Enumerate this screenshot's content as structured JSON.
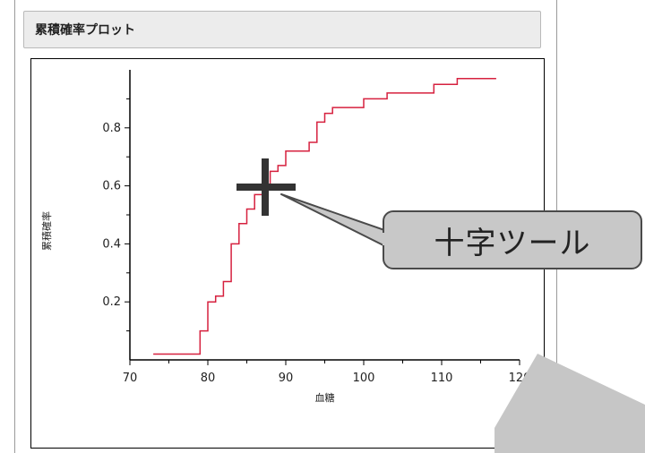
{
  "panel": {
    "title": "累積確率プロット"
  },
  "callout": {
    "label": "十字ツール"
  },
  "colors": {
    "line": "#d6213f",
    "axis": "#000000",
    "crosshair": "#333333",
    "callout_fill": "#c8c8c8",
    "overlay": "#c6c6c6"
  },
  "icons": {
    "crosshair": "crosshair-icon"
  },
  "chart_data": {
    "type": "line",
    "step": true,
    "xlabel": "血糖",
    "ylabel": "累積確率",
    "xlim": [
      70,
      120
    ],
    "ylim": [
      0,
      1
    ],
    "x_ticks": [
      "70",
      "80",
      "90",
      "100",
      "110",
      "120"
    ],
    "x_tick_values": [
      70,
      80,
      90,
      100,
      110,
      120
    ],
    "y_ticks": [
      "0.2",
      "0.4",
      "0.6",
      "0.8"
    ],
    "y_tick_values": [
      0.2,
      0.4,
      0.6,
      0.8
    ],
    "grid": false,
    "series": [
      {
        "x": [
          73,
          79,
          80,
          81,
          82,
          83,
          84,
          85,
          86,
          87,
          88,
          89,
          90,
          93,
          94,
          95,
          96,
          100,
          103,
          109,
          112,
          117
        ],
        "y": [
          0.02,
          0.1,
          0.2,
          0.22,
          0.27,
          0.4,
          0.47,
          0.52,
          0.57,
          0.6,
          0.65,
          0.67,
          0.72,
          0.75,
          0.82,
          0.85,
          0.87,
          0.9,
          0.92,
          0.95,
          0.97,
          0.97
        ]
      }
    ]
  }
}
